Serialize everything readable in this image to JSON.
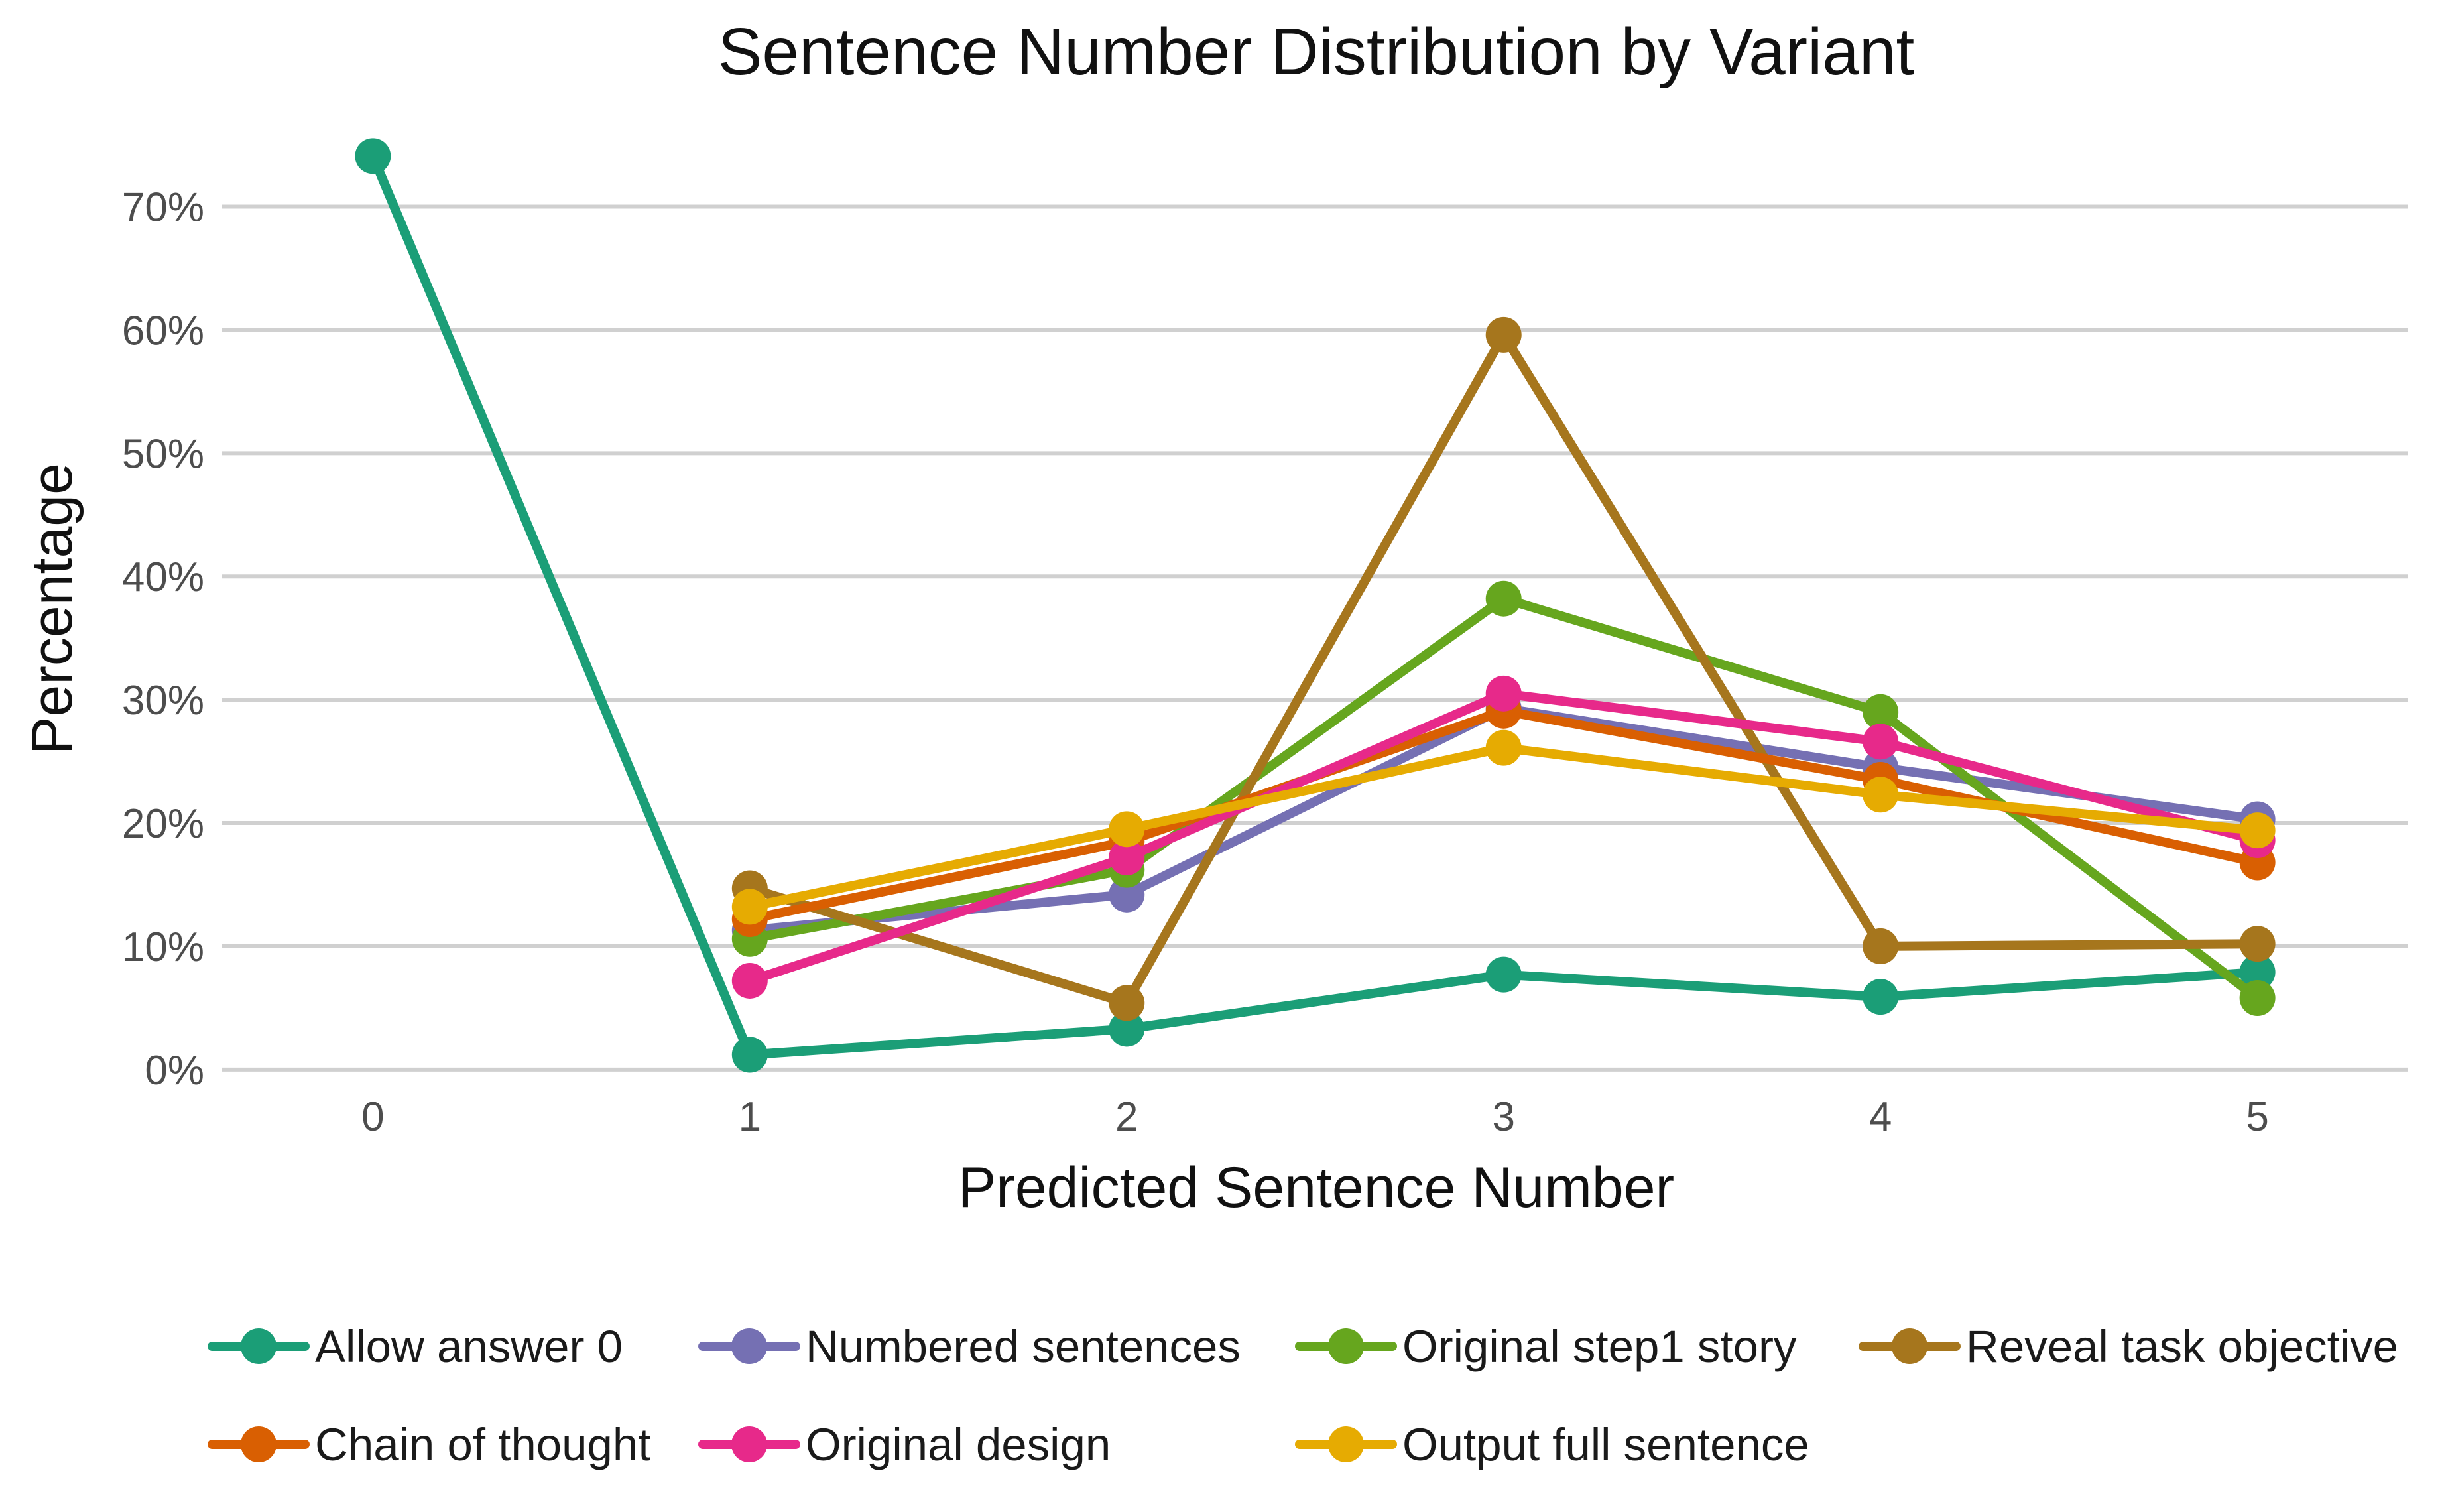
{
  "chart_data": {
    "type": "line",
    "title": "Sentence Number Distribution by Variant",
    "xlabel": "Predicted Sentence Number",
    "ylabel": "Percentage",
    "x_ticks": [
      "0",
      "1",
      "2",
      "3",
      "4",
      "5"
    ],
    "y_ticks": [
      "0%",
      "10%",
      "20%",
      "30%",
      "40%",
      "50%",
      "60%",
      "70%"
    ],
    "xlim": [
      -0.4,
      5.4
    ],
    "ylim": [
      -2,
      76
    ],
    "grid": "horizontal",
    "legend_position": "bottom",
    "series": [
      {
        "name": "Allow answer 0",
        "color": "#1b9e77",
        "x": [
          0,
          1,
          2,
          3,
          4,
          5
        ],
        "values": [
          74.1,
          1.2,
          3.3,
          7.7,
          5.9,
          7.9
        ]
      },
      {
        "name": "Numbered sentences",
        "color": "#7570b3",
        "x": [
          1,
          2,
          3,
          4,
          5
        ],
        "values": [
          11.3,
          14.2,
          29.3,
          24.5,
          20.3
        ]
      },
      {
        "name": "Original step1 story",
        "color": "#66a61e",
        "x": [
          1,
          2,
          3,
          4,
          5
        ],
        "values": [
          10.6,
          16.2,
          38.2,
          29.0,
          5.8
        ]
      },
      {
        "name": "Reveal task objective",
        "color": "#a6761d",
        "x": [
          1,
          2,
          3,
          4,
          5
        ],
        "values": [
          14.7,
          5.4,
          59.6,
          10.0,
          10.2
        ]
      },
      {
        "name": "Chain of thought",
        "color": "#d95f02",
        "x": [
          1,
          2,
          3,
          4,
          5
        ],
        "values": [
          12.2,
          18.5,
          29.1,
          23.5,
          16.8
        ]
      },
      {
        "name": "Original design",
        "color": "#e7298a",
        "x": [
          1,
          2,
          3,
          4,
          5
        ],
        "values": [
          7.2,
          17.2,
          30.5,
          26.6,
          18.6
        ]
      },
      {
        "name": "Output full sentence",
        "color": "#e6ab02",
        "x": [
          1,
          2,
          3,
          4,
          5
        ],
        "values": [
          13.2,
          19.5,
          26.1,
          22.3,
          19.4
        ]
      }
    ]
  }
}
